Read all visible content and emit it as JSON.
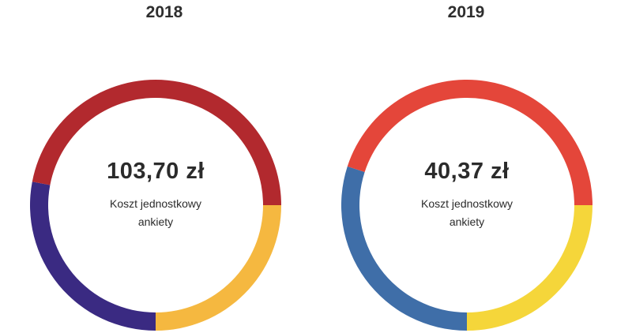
{
  "chart_data": [
    {
      "type": "pie",
      "title": "2018",
      "center_value": "103,70 zł",
      "center_caption_line1": "Koszt jednostkowy",
      "center_caption_line2": "ankiety",
      "slices": [
        {
          "value": 25,
          "color": "#f5b840"
        },
        {
          "value": 28,
          "color": "#3a2a82"
        },
        {
          "value": 47,
          "color": "#b2292e"
        }
      ]
    },
    {
      "type": "pie",
      "title": "2019",
      "center_value": "40,37 zł",
      "center_caption_line1": "Koszt jednostkowy",
      "center_caption_line2": "ankiety",
      "slices": [
        {
          "value": 25,
          "color": "#f5d63a"
        },
        {
          "value": 30,
          "color": "#3f6ea8"
        },
        {
          "value": 45,
          "color": "#e4463a"
        }
      ]
    }
  ]
}
